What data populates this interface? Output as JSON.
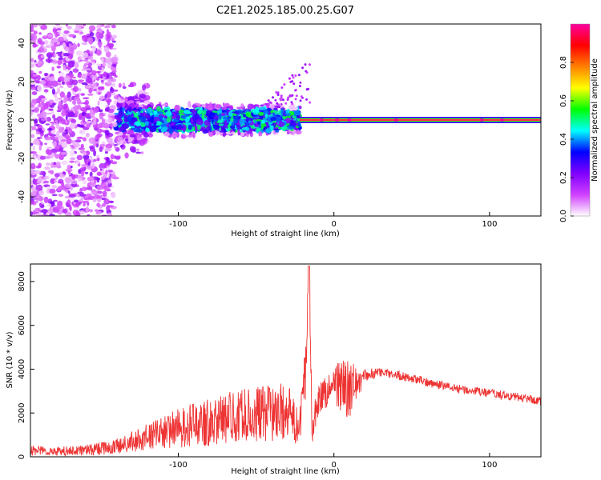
{
  "chart_data": [
    {
      "type": "heatmap",
      "title": "C2E1.2025.185.00.25.G07",
      "xlabel": "Height of straight line (km)",
      "ylabel": "Frequency (Hz)",
      "xlim": [
        -195,
        133
      ],
      "ylim": [
        -50,
        50
      ],
      "x_ticks": [
        -100,
        0,
        100
      ],
      "y_ticks": [
        -40,
        -20,
        0,
        20,
        40
      ],
      "grid": false,
      "colorbar": {
        "label": "Normalized spectral amplitude",
        "range": [
          0,
          1
        ],
        "ticks": [
          0.0,
          0.2,
          0.4,
          0.6,
          0.8
        ],
        "colors": [
          "#ffffff",
          "#d040ff",
          "#8000ff",
          "#0000ff",
          "#00ffff",
          "#00ff00",
          "#ffff00",
          "#ff8000",
          "#ff0000",
          "#ff00a0"
        ]
      },
      "features": {
        "carrier_line": {
          "x_start": -22,
          "x_end": 133,
          "frequency": 0,
          "level": 0.95
        },
        "scatter_region": {
          "x_start": -195,
          "x_end": -22,
          "frequency_spread": 50
        }
      }
    },
    {
      "type": "line",
      "xlabel": "Height of straight line (km)",
      "ylabel": "SNR (10 * v/v)",
      "xlim": [
        -195,
        133
      ],
      "ylim": [
        0,
        8800
      ],
      "x_ticks": [
        -100,
        0,
        100
      ],
      "y_ticks": [
        0,
        2000,
        4000,
        6000,
        8000
      ],
      "grid": false,
      "series": [
        {
          "color": "#ee3333",
          "x": [
            -195,
            -180,
            -160,
            -140,
            -120,
            -100,
            -80,
            -60,
            -40,
            -30,
            -22,
            -18,
            -16,
            -14,
            -12,
            -10,
            -5,
            0,
            5,
            10,
            15,
            20,
            25,
            30,
            40,
            60,
            80,
            100,
            120,
            133
          ],
          "y": [
            300,
            250,
            300,
            450,
            900,
            1300,
            1600,
            1900,
            2000,
            2100,
            1200,
            4200,
            8700,
            1300,
            2000,
            2600,
            3000,
            3400,
            3200,
            3000,
            3400,
            3700,
            3800,
            3850,
            3750,
            3400,
            3100,
            2900,
            2700,
            2550
          ],
          "noise_envelope": [
            250,
            200,
            250,
            350,
            600,
            900,
            1100,
            1200,
            1300,
            1300,
            800,
            1500,
            500,
            800,
            700,
            700,
            800,
            700,
            1500,
            1300,
            800,
            300,
            250,
            200,
            200,
            200,
            200,
            200,
            200,
            200
          ]
        }
      ]
    }
  ]
}
